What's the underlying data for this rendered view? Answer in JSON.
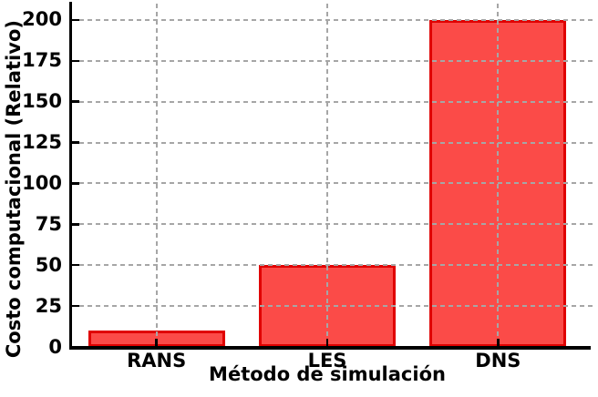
{
  "chart_data": {
    "type": "bar",
    "title": "",
    "categories": [
      "RANS",
      "LES",
      "DNS"
    ],
    "values": [
      10,
      50,
      200
    ],
    "xlabel": "Método de simulación",
    "ylabel": "Costo computacional (Relativo)",
    "ylim": [
      0,
      210
    ],
    "yticks": [
      0,
      25,
      50,
      75,
      100,
      125,
      150,
      175,
      200
    ],
    "grid": true,
    "legend": "none",
    "bar_width_fraction": 0.8,
    "colors": {
      "bar_fill": "#fb4b48",
      "bar_edge": "#e00000",
      "grid": "#a6a6a6",
      "axis": "#000000",
      "text": "#000000",
      "background": "#ffffff"
    }
  }
}
